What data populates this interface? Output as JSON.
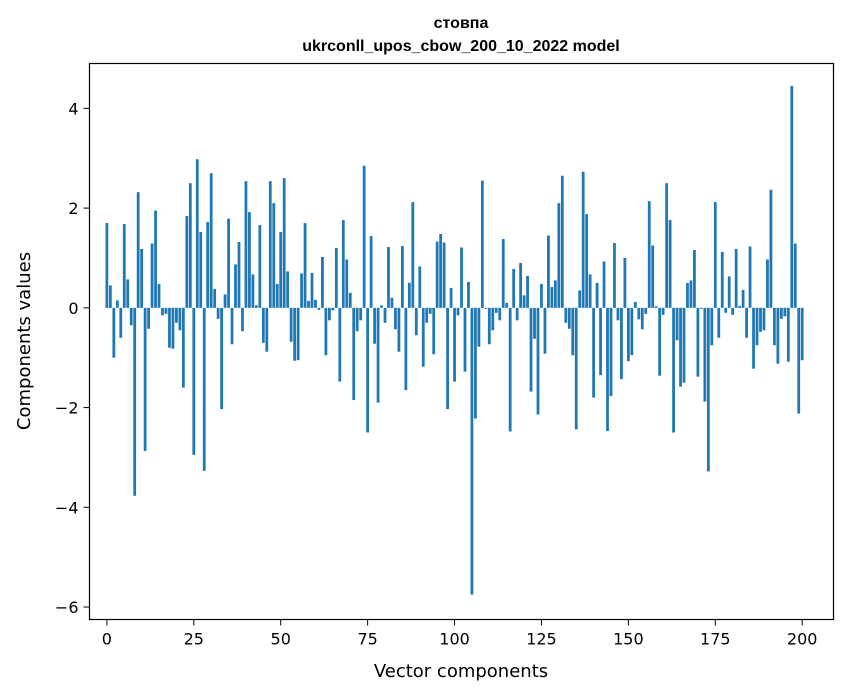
{
  "chart_data": {
    "type": "bar",
    "title": "стовпа",
    "subtitle": "ukrconll_upos_cbow_200_10_2022 model",
    "xlabel": "Vector components",
    "ylabel": "Components values",
    "xlim": [
      -5,
      209
    ],
    "ylim": [
      -6.25,
      4.9
    ],
    "xticks": [
      0,
      25,
      50,
      75,
      100,
      125,
      150,
      175,
      200
    ],
    "yticks": [
      -6,
      -4,
      -2,
      0,
      2,
      4
    ],
    "ytick_labels": [
      "−6",
      "−4",
      "−2",
      "0",
      "2",
      "4"
    ],
    "bar_color": "#1f77b4",
    "grid": false,
    "values": [
      1.7,
      0.45,
      -1.0,
      0.15,
      -0.6,
      1.68,
      0.57,
      -0.35,
      -3.77,
      2.32,
      1.18,
      -2.87,
      -0.42,
      1.29,
      1.95,
      0.48,
      -0.15,
      -0.12,
      -0.8,
      -0.82,
      -0.3,
      -0.45,
      -1.6,
      1.84,
      2.5,
      -2.95,
      2.98,
      1.52,
      -3.27,
      1.72,
      2.7,
      0.38,
      -0.22,
      -2.03,
      0.27,
      1.79,
      -0.73,
      0.87,
      1.32,
      -0.47,
      2.54,
      1.92,
      0.67,
      0.05,
      1.66,
      -0.7,
      -0.88,
      2.54,
      2.1,
      0.48,
      1.52,
      2.6,
      0.73,
      -0.68,
      -1.06,
      -1.05,
      0.69,
      1.7,
      0.14,
      0.7,
      0.16,
      -0.04,
      1.02,
      -0.95,
      -0.25,
      -0.05,
      1.2,
      -1.48,
      1.76,
      0.97,
      0.3,
      -1.85,
      -0.47,
      -0.25,
      2.85,
      -2.5,
      1.44,
      -0.72,
      -1.9,
      0.05,
      -0.3,
      1.22,
      0.2,
      -0.43,
      -0.88,
      1.24,
      -1.65,
      0.5,
      2.12,
      -0.55,
      0.83,
      -1.18,
      -0.3,
      -0.12,
      -0.93,
      1.33,
      1.48,
      1.31,
      -2.03,
      0.4,
      -1.48,
      -0.15,
      1.21,
      -1.28,
      0.52,
      -5.75,
      -2.22,
      -0.78,
      2.55,
      -0.02,
      -0.73,
      -0.45,
      -0.1,
      -0.25,
      1.38,
      0.1,
      -2.48,
      0.78,
      -0.25,
      0.9,
      0.25,
      0.64,
      -1.68,
      -0.62,
      -2.14,
      0.48,
      -0.92,
      1.45,
      0.42,
      0.55,
      2.1,
      2.65,
      -0.3,
      -0.42,
      -0.95,
      -2.44,
      0.35,
      2.73,
      1.88,
      0.67,
      -1.8,
      0.5,
      -1.35,
      0.93,
      -2.47,
      -1.77,
      1.3,
      -0.25,
      -1.43,
      1.0,
      -1.07,
      -0.95,
      0.12,
      -0.23,
      -0.43,
      -0.12,
      2.14,
      1.25,
      0.03,
      -1.36,
      -0.14,
      2.5,
      1.76,
      -2.5,
      -0.65,
      -1.58,
      -1.5,
      0.5,
      0.55,
      1.16,
      -1.38,
      -0.02,
      -1.88,
      -3.28,
      -0.75,
      2.12,
      -0.6,
      1.12,
      -0.1,
      0.63,
      -0.14,
      1.18,
      0.04,
      0.36,
      -0.6,
      1.23,
      -1.22,
      -0.75,
      -0.48,
      -0.45,
      0.97,
      2.37,
      -0.75,
      -1.12,
      -0.22,
      -0.17,
      -1.08,
      4.45,
      1.29,
      -2.12,
      -1.05
    ]
  }
}
